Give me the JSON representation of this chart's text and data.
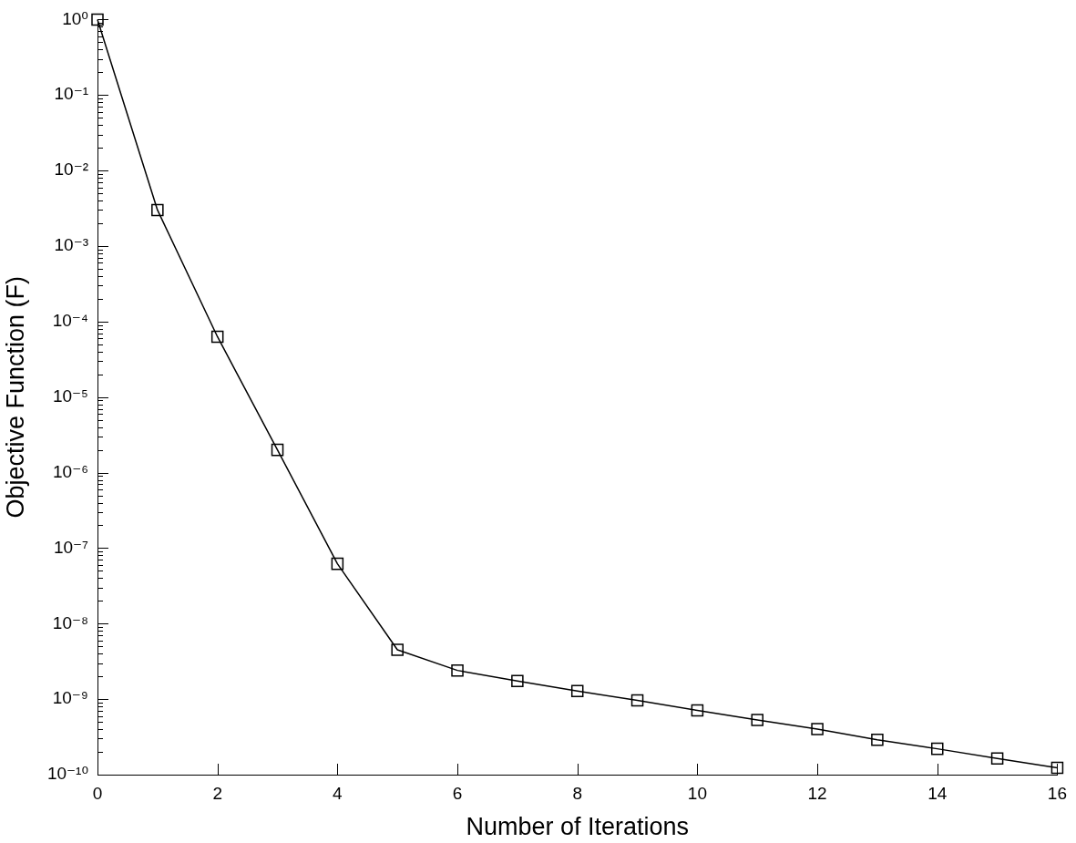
{
  "chart_data": {
    "type": "line",
    "xlabel": "Number of Iterations",
    "ylabel": "Objective Function (F)",
    "x": [
      0,
      1,
      2,
      3,
      4,
      5,
      6,
      7,
      8,
      9,
      10,
      11,
      12,
      13,
      14,
      15,
      16
    ],
    "series": [
      {
        "color": "#000000",
        "values": [
          1,
          0.003,
          6.3e-05,
          2e-06,
          6.2e-08,
          4.5e-09,
          2.4e-09,
          1.74e-09,
          1.28e-09,
          9.6e-10,
          7.1e-10,
          5.3e-10,
          4e-10,
          2.9e-10,
          2.2e-10,
          1.64e-10,
          1.23e-10
        ]
      }
    ],
    "xlim": [
      0,
      16
    ],
    "xticks": [
      0,
      2,
      4,
      6,
      8,
      10,
      12,
      14,
      16
    ],
    "ylim": [
      1e-10,
      1
    ],
    "yticks": [
      {
        "value": 1e-10,
        "label": "10⁻¹⁰"
      },
      {
        "value": 2e-10,
        "label": null
      },
      {
        "value": 3e-10,
        "label": null
      },
      {
        "value": 4e-10,
        "label": null
      },
      {
        "value": 5e-10,
        "label": null
      },
      {
        "value": 6e-10,
        "label": null
      },
      {
        "value": 7e-10,
        "label": null
      },
      {
        "value": 8e-10,
        "label": null
      },
      {
        "value": 9e-10,
        "label": null
      },
      {
        "value": 1e-09,
        "label": "10⁻⁹"
      },
      {
        "value": 2e-09,
        "label": null
      },
      {
        "value": 3e-09,
        "label": null
      },
      {
        "value": 4e-09,
        "label": null
      },
      {
        "value": 5e-09,
        "label": null
      },
      {
        "value": 6e-09,
        "label": null
      },
      {
        "value": 7e-09,
        "label": null
      },
      {
        "value": 8e-09,
        "label": null
      },
      {
        "value": 9e-09,
        "label": null
      },
      {
        "value": 1e-08,
        "label": "10⁻⁸"
      },
      {
        "value": 2e-08,
        "label": null
      },
      {
        "value": 3e-08,
        "label": null
      },
      {
        "value": 4e-08,
        "label": null
      },
      {
        "value": 5e-08,
        "label": null
      },
      {
        "value": 6e-08,
        "label": null
      },
      {
        "value": 7e-08,
        "label": null
      },
      {
        "value": 8e-08,
        "label": null
      },
      {
        "value": 9e-08,
        "label": null
      },
      {
        "value": 1e-07,
        "label": "10⁻⁷"
      },
      {
        "value": 2e-07,
        "label": null
      },
      {
        "value": 3e-07,
        "label": null
      },
      {
        "value": 4e-07,
        "label": null
      },
      {
        "value": 5e-07,
        "label": null
      },
      {
        "value": 6e-07,
        "label": null
      },
      {
        "value": 7e-07,
        "label": null
      },
      {
        "value": 8e-07,
        "label": null
      },
      {
        "value": 9e-07,
        "label": null
      },
      {
        "value": 1e-06,
        "label": "10⁻⁶"
      },
      {
        "value": 2e-06,
        "label": null
      },
      {
        "value": 3e-06,
        "label": null
      },
      {
        "value": 4e-06,
        "label": null
      },
      {
        "value": 5e-06,
        "label": null
      },
      {
        "value": 6e-06,
        "label": null
      },
      {
        "value": 7e-06,
        "label": null
      },
      {
        "value": 8e-06,
        "label": null
      },
      {
        "value": 9e-06,
        "label": null
      },
      {
        "value": 1e-05,
        "label": "10⁻⁵"
      },
      {
        "value": 2e-05,
        "label": null
      },
      {
        "value": 3e-05,
        "label": null
      },
      {
        "value": 4e-05,
        "label": null
      },
      {
        "value": 5e-05,
        "label": null
      },
      {
        "value": 6e-05,
        "label": null
      },
      {
        "value": 7e-05,
        "label": null
      },
      {
        "value": 8e-05,
        "label": null
      },
      {
        "value": 9e-05,
        "label": null
      },
      {
        "value": 0.0001,
        "label": "10⁻⁴"
      },
      {
        "value": 0.0002,
        "label": null
      },
      {
        "value": 0.0003,
        "label": null
      },
      {
        "value": 0.0004,
        "label": null
      },
      {
        "value": 0.0005,
        "label": null
      },
      {
        "value": 0.0006,
        "label": null
      },
      {
        "value": 0.0007,
        "label": null
      },
      {
        "value": 0.0008,
        "label": null
      },
      {
        "value": 0.0009,
        "label": null
      },
      {
        "value": 0.001,
        "label": "10⁻³"
      },
      {
        "value": 0.002,
        "label": null
      },
      {
        "value": 0.003,
        "label": null
      },
      {
        "value": 0.004,
        "label": null
      },
      {
        "value": 0.005,
        "label": null
      },
      {
        "value": 0.006,
        "label": null
      },
      {
        "value": 0.007,
        "label": null
      },
      {
        "value": 0.008,
        "label": null
      },
      {
        "value": 0.009,
        "label": null
      },
      {
        "value": 0.01,
        "label": "10⁻²"
      },
      {
        "value": 0.02,
        "label": null
      },
      {
        "value": 0.03,
        "label": null
      },
      {
        "value": 0.04,
        "label": null
      },
      {
        "value": 0.05,
        "label": null
      },
      {
        "value": 0.06,
        "label": null
      },
      {
        "value": 0.07,
        "label": null
      },
      {
        "value": 0.08,
        "label": null
      },
      {
        "value": 0.09,
        "label": null
      },
      {
        "value": 0.1,
        "label": "10⁻¹"
      },
      {
        "value": 0.2,
        "label": null
      },
      {
        "value": 0.3,
        "label": null
      },
      {
        "value": 0.4,
        "label": null
      },
      {
        "value": 0.5,
        "label": null
      },
      {
        "value": 0.6,
        "label": null
      },
      {
        "value": 0.7,
        "label": null
      },
      {
        "value": 0.8,
        "label": null
      },
      {
        "value": 0.9,
        "label": null
      },
      {
        "value": 1,
        "label": "10⁰"
      }
    ],
    "log": "y",
    "marker": "square",
    "line_style": "solid"
  }
}
